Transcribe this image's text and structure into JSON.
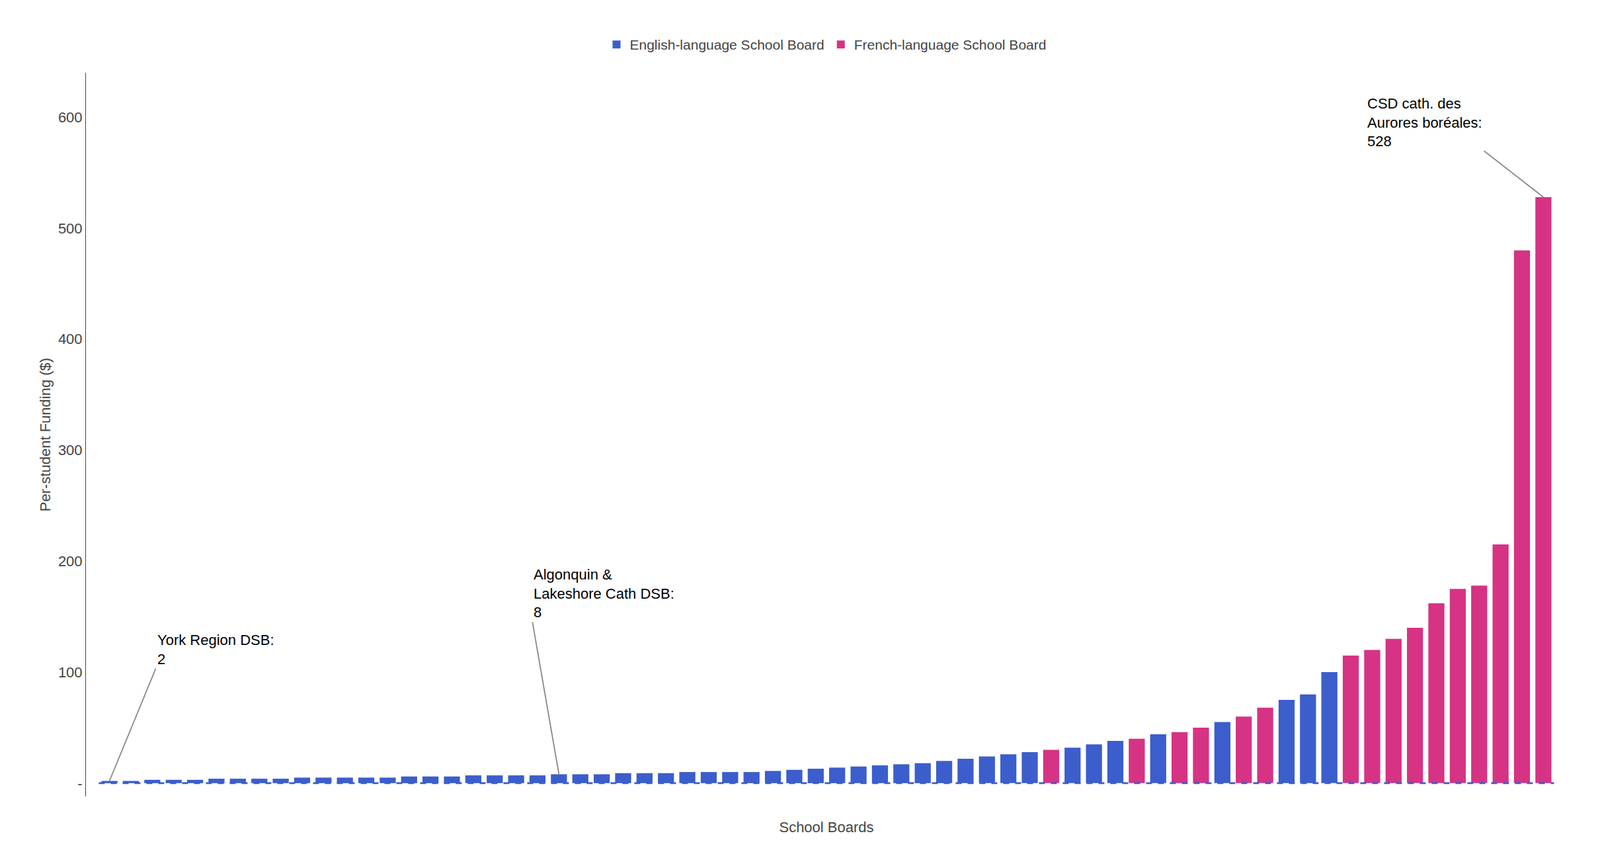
{
  "chart_data": {
    "type": "bar",
    "xlabel": "School Boards",
    "ylabel": "Per-student Funding ($)",
    "categories": [
      null,
      null,
      null,
      null,
      null,
      null,
      null,
      null,
      null,
      null,
      null,
      null,
      null,
      null,
      null,
      null,
      null,
      null,
      null,
      null,
      null,
      null,
      null,
      null,
      null,
      null,
      null,
      null,
      null,
      null,
      null,
      null,
      null,
      null,
      null,
      null,
      null,
      null,
      null,
      null,
      null,
      null,
      null,
      null,
      null,
      null,
      null,
      null,
      null,
      null,
      null,
      null,
      null,
      null,
      null,
      null,
      null,
      null,
      null,
      null,
      null,
      null,
      null,
      null,
      null,
      null,
      null,
      null
    ],
    "series": [
      {
        "name": "English-language School Board",
        "color": "#3B5ECC",
        "values": [
          2,
          2,
          3,
          3,
          3,
          4,
          4,
          4,
          4,
          5,
          5,
          5,
          5,
          5,
          6,
          6,
          6,
          7,
          7,
          7,
          7,
          8,
          8,
          8,
          9,
          9,
          9,
          10,
          10,
          10,
          10,
          11,
          12,
          13,
          14,
          15,
          16,
          17,
          18,
          20,
          22,
          24,
          26,
          28,
          null,
          32,
          35,
          38,
          null,
          44,
          null,
          null,
          55,
          null,
          null,
          75,
          80,
          100,
          null,
          null,
          null,
          null,
          null,
          null,
          null,
          null,
          null,
          null
        ]
      },
      {
        "name": "French-language School Board",
        "color": "#D63384",
        "values": [
          null,
          null,
          null,
          null,
          null,
          null,
          null,
          null,
          null,
          null,
          null,
          null,
          null,
          null,
          null,
          null,
          null,
          null,
          null,
          null,
          null,
          null,
          null,
          null,
          null,
          null,
          null,
          null,
          null,
          null,
          null,
          null,
          null,
          null,
          null,
          null,
          null,
          null,
          null,
          null,
          null,
          null,
          null,
          null,
          30,
          null,
          null,
          null,
          40,
          null,
          46,
          50,
          null,
          60,
          68,
          null,
          null,
          null,
          115,
          120,
          130,
          140,
          162,
          175,
          178,
          215,
          480,
          528
        ]
      }
    ],
    "ylim": [
      -12,
      640
    ],
    "yticks": [
      {
        "value": 0,
        "label": "-"
      },
      100,
      200,
      300,
      400,
      500,
      600
    ],
    "grid": false,
    "legend": "top",
    "tick_labels": "y",
    "annotations": [
      {
        "text": "York Region DSB:\n2",
        "value": 2
      },
      {
        "text": "Algonquin &\nLakeshore Cath DSB:\n8",
        "value": 8
      },
      {
        "text": "CSD cath. des\nAurores boréales:\n528",
        "value": 528
      }
    ]
  }
}
